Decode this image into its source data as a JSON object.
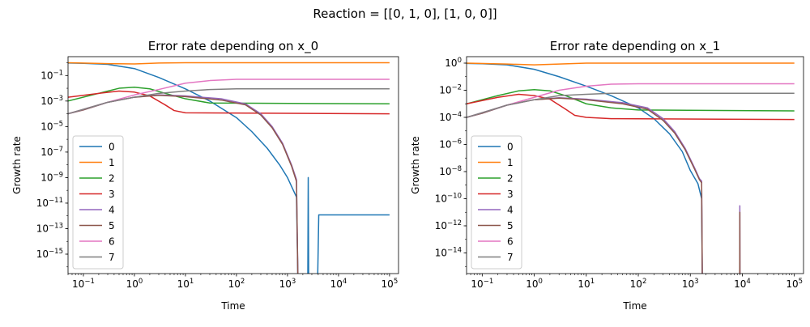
{
  "figure": {
    "suptitle": "Reaction = [[0, 1, 0], [1, 0, 0]]"
  },
  "colors": [
    "#1f77b4",
    "#ff7f0e",
    "#2ca02c",
    "#d62728",
    "#9467bd",
    "#8c564b",
    "#e377c2",
    "#7f7f7f"
  ],
  "chart_data": [
    {
      "type": "line",
      "title": "Error rate depending on x_0",
      "xlabel": "Time",
      "ylabel": "Growth rate",
      "xscale": "log",
      "yscale": "log",
      "xlim": [
        0.05,
        150000
      ],
      "ylim": [
        3e-17,
        3
      ],
      "x_ticks": [
        {
          "value": 0.1,
          "base": "10",
          "exp": "−1"
        },
        {
          "value": 1,
          "base": "10",
          "exp": "0"
        },
        {
          "value": 10,
          "base": "10",
          "exp": "1"
        },
        {
          "value": 100,
          "base": "10",
          "exp": "2"
        },
        {
          "value": 1000,
          "base": "10",
          "exp": "3"
        },
        {
          "value": 10000,
          "base": "10",
          "exp": "4"
        },
        {
          "value": 100000,
          "base": "10",
          "exp": "5"
        }
      ],
      "y_ticks": [
        {
          "value": 0.1,
          "base": "10",
          "exp": "−1"
        },
        {
          "value": 0.001,
          "base": "10",
          "exp": "−3"
        },
        {
          "value": 1e-05,
          "base": "10",
          "exp": "−5"
        },
        {
          "value": 1e-07,
          "base": "10",
          "exp": "−7"
        },
        {
          "value": 1e-09,
          "base": "10",
          "exp": "−9"
        },
        {
          "value": 1e-11,
          "base": "10",
          "exp": "−11"
        },
        {
          "value": 1e-13,
          "base": "10",
          "exp": "−13"
        },
        {
          "value": 1e-15,
          "base": "10",
          "exp": "−15"
        }
      ],
      "legend_position": "lower left",
      "series": [
        {
          "name": "0",
          "points": [
            [
              0.05,
              0.95
            ],
            [
              0.1,
              0.9
            ],
            [
              0.3,
              0.75
            ],
            [
              1,
              0.35
            ],
            [
              3,
              0.07
            ],
            [
              10,
              0.009
            ],
            [
              30,
              0.001
            ],
            [
              100,
              5e-05
            ],
            [
              200,
              4e-06
            ],
            [
              400,
              2e-07
            ],
            [
              700,
              1e-08
            ],
            [
              1000,
              1e-09
            ],
            [
              1500,
              3e-11
            ],
            [
              1600,
              1e-17
            ],
            [
              2500,
              1e-17
            ],
            [
              2550,
              1e-09
            ],
            [
              2600,
              1e-17
            ],
            [
              3900,
              1e-17
            ],
            [
              4100,
              1.2e-12
            ],
            [
              100000,
              1.2e-12
            ]
          ]
        },
        {
          "name": "1",
          "points": [
            [
              0.05,
              1.0
            ],
            [
              0.3,
              0.85
            ],
            [
              1,
              0.8
            ],
            [
              3,
              0.95
            ],
            [
              10,
              1.0
            ],
            [
              100000,
              1.0
            ]
          ]
        },
        {
          "name": "2",
          "points": [
            [
              0.05,
              0.001
            ],
            [
              0.2,
              0.004
            ],
            [
              0.5,
              0.01
            ],
            [
              1,
              0.012
            ],
            [
              2,
              0.009
            ],
            [
              4,
              0.004
            ],
            [
              10,
              0.0015
            ],
            [
              30,
              0.0007
            ],
            [
              100000,
              0.0006
            ]
          ]
        },
        {
          "name": "3",
          "points": [
            [
              0.05,
              0.002
            ],
            [
              0.2,
              0.004
            ],
            [
              0.5,
              0.006
            ],
            [
              1,
              0.005
            ],
            [
              2,
              0.0025
            ],
            [
              4,
              0.0005
            ],
            [
              6,
              0.00018
            ],
            [
              10,
              0.00012
            ],
            [
              100000,
              0.0001
            ]
          ]
        },
        {
          "name": "4",
          "points": [
            [
              0.05,
              0.0001
            ],
            [
              0.1,
              0.0002
            ],
            [
              0.3,
              0.0008
            ],
            [
              1,
              0.002
            ],
            [
              3,
              0.003
            ],
            [
              10,
              0.0025
            ],
            [
              50,
              0.0015
            ],
            [
              150,
              0.0006
            ],
            [
              300,
              0.0001
            ],
            [
              500,
              1e-05
            ],
            [
              800,
              5e-07
            ],
            [
              1200,
              1e-08
            ],
            [
              1500,
              7e-10
            ],
            [
              1600,
              1e-17
            ]
          ]
        },
        {
          "name": "5",
          "points": [
            [
              0.05,
              0.0001
            ],
            [
              0.1,
              0.0002
            ],
            [
              0.3,
              0.0008
            ],
            [
              1,
              0.002
            ],
            [
              3,
              0.0028
            ],
            [
              10,
              0.0022
            ],
            [
              50,
              0.0012
            ],
            [
              150,
              0.0005
            ],
            [
              300,
              8e-05
            ],
            [
              500,
              8e-06
            ],
            [
              800,
              4e-07
            ],
            [
              1200,
              8e-09
            ],
            [
              1500,
              5e-10
            ],
            [
              1600,
              1e-17
            ]
          ]
        },
        {
          "name": "6",
          "points": [
            [
              0.05,
              0.0001
            ],
            [
              0.3,
              0.0008
            ],
            [
              1,
              0.003
            ],
            [
              3,
              0.008
            ],
            [
              10,
              0.025
            ],
            [
              30,
              0.04
            ],
            [
              100,
              0.05
            ],
            [
              100000,
              0.05
            ]
          ]
        },
        {
          "name": "7",
          "points": [
            [
              0.05,
              0.0001
            ],
            [
              0.3,
              0.0008
            ],
            [
              1,
              0.002
            ],
            [
              3,
              0.004
            ],
            [
              10,
              0.006
            ],
            [
              30,
              0.008
            ],
            [
              100,
              0.009
            ],
            [
              100000,
              0.009
            ]
          ]
        }
      ]
    },
    {
      "type": "line",
      "title": "Error rate depending on x_1",
      "xlabel": "Time",
      "ylabel": "Growth rate",
      "xscale": "log",
      "yscale": "log",
      "xlim": [
        0.05,
        150000
      ],
      "ylim": [
        3e-16,
        3
      ],
      "x_ticks": [
        {
          "value": 0.1,
          "base": "10",
          "exp": "−1"
        },
        {
          "value": 1,
          "base": "10",
          "exp": "0"
        },
        {
          "value": 10,
          "base": "10",
          "exp": "1"
        },
        {
          "value": 100,
          "base": "10",
          "exp": "2"
        },
        {
          "value": 1000,
          "base": "10",
          "exp": "3"
        },
        {
          "value": 10000,
          "base": "10",
          "exp": "4"
        },
        {
          "value": 100000,
          "base": "10",
          "exp": "5"
        }
      ],
      "y_ticks": [
        {
          "value": 1,
          "base": "10",
          "exp": "0"
        },
        {
          "value": 0.01,
          "base": "10",
          "exp": "−2"
        },
        {
          "value": 0.0001,
          "base": "10",
          "exp": "−4"
        },
        {
          "value": 1e-06,
          "base": "10",
          "exp": "−6"
        },
        {
          "value": 1e-08,
          "base": "10",
          "exp": "−8"
        },
        {
          "value": 1e-10,
          "base": "10",
          "exp": "−10"
        },
        {
          "value": 1e-12,
          "base": "10",
          "exp": "−12"
        },
        {
          "value": 1e-14,
          "base": "10",
          "exp": "−14"
        }
      ],
      "legend_position": "lower left",
      "series": [
        {
          "name": "0",
          "points": [
            [
              0.05,
              0.95
            ],
            [
              0.1,
              0.9
            ],
            [
              0.3,
              0.75
            ],
            [
              1,
              0.35
            ],
            [
              3,
              0.1
            ],
            [
              10,
              0.02
            ],
            [
              30,
              0.004
            ],
            [
              100,
              0.0005
            ],
            [
              200,
              8e-05
            ],
            [
              400,
              6e-06
            ],
            [
              700,
              3e-07
            ],
            [
              1000,
              1.2e-08
            ],
            [
              1400,
              1.3e-09
            ],
            [
              1650,
              1e-10
            ],
            [
              1700,
              1e-16
            ]
          ]
        },
        {
          "name": "1",
          "points": [
            [
              0.05,
              1.0
            ],
            [
              0.3,
              0.85
            ],
            [
              1,
              0.75
            ],
            [
              3,
              0.85
            ],
            [
              10,
              1.0
            ],
            [
              100000,
              1.0
            ]
          ]
        },
        {
          "name": "2",
          "points": [
            [
              0.05,
              0.001
            ],
            [
              0.2,
              0.004
            ],
            [
              0.5,
              0.009
            ],
            [
              1,
              0.011
            ],
            [
              2,
              0.009
            ],
            [
              4,
              0.004
            ],
            [
              10,
              0.001
            ],
            [
              30,
              0.0005
            ],
            [
              100,
              0.00035
            ],
            [
              100000,
              0.0003
            ]
          ]
        },
        {
          "name": "3",
          "points": [
            [
              0.05,
              0.001
            ],
            [
              0.2,
              0.003
            ],
            [
              0.5,
              0.005
            ],
            [
              1,
              0.004
            ],
            [
              2,
              0.0022
            ],
            [
              4,
              0.0004
            ],
            [
              6,
              0.00014
            ],
            [
              10,
              0.0001
            ],
            [
              30,
              8e-05
            ],
            [
              100000,
              7e-05
            ]
          ]
        },
        {
          "name": "4",
          "points": [
            [
              0.05,
              0.0001
            ],
            [
              0.1,
              0.0002
            ],
            [
              0.3,
              0.0008
            ],
            [
              1,
              0.002
            ],
            [
              3,
              0.0028
            ],
            [
              10,
              0.0022
            ],
            [
              50,
              0.0012
            ],
            [
              150,
              0.0005
            ],
            [
              300,
              8e-05
            ],
            [
              500,
              9e-06
            ],
            [
              800,
              5e-07
            ],
            [
              1200,
              2e-08
            ],
            [
              1500,
              3e-09
            ],
            [
              1650,
              2e-09
            ],
            [
              1700,
              1e-16
            ],
            [
              8900,
              1e-16
            ],
            [
              8950,
              3e-11
            ],
            [
              9000,
              1e-16
            ]
          ]
        },
        {
          "name": "5",
          "points": [
            [
              0.05,
              0.0001
            ],
            [
              0.1,
              0.0002
            ],
            [
              0.3,
              0.0008
            ],
            [
              1,
              0.002
            ],
            [
              3,
              0.0026
            ],
            [
              10,
              0.002
            ],
            [
              50,
              0.001
            ],
            [
              150,
              0.0004
            ],
            [
              300,
              6e-05
            ],
            [
              500,
              7e-06
            ],
            [
              800,
              4e-07
            ],
            [
              1200,
              1.6e-08
            ],
            [
              1500,
              2.5e-09
            ],
            [
              1650,
              1.5e-09
            ],
            [
              1700,
              1e-16
            ],
            [
              8900,
              1e-16
            ],
            [
              8950,
              1e-11
            ],
            [
              9000,
              1e-16
            ]
          ]
        },
        {
          "name": "6",
          "points": [
            [
              0.05,
              0.0001
            ],
            [
              0.3,
              0.0008
            ],
            [
              1,
              0.003
            ],
            [
              3,
              0.01
            ],
            [
              10,
              0.02
            ],
            [
              30,
              0.028
            ],
            [
              100,
              0.03
            ],
            [
              100000,
              0.03
            ]
          ]
        },
        {
          "name": "7",
          "points": [
            [
              0.05,
              0.0001
            ],
            [
              0.3,
              0.0008
            ],
            [
              1,
              0.002
            ],
            [
              3,
              0.004
            ],
            [
              10,
              0.005
            ],
            [
              30,
              0.006
            ],
            [
              100,
              0.006
            ],
            [
              100000,
              0.006
            ]
          ]
        }
      ]
    }
  ]
}
